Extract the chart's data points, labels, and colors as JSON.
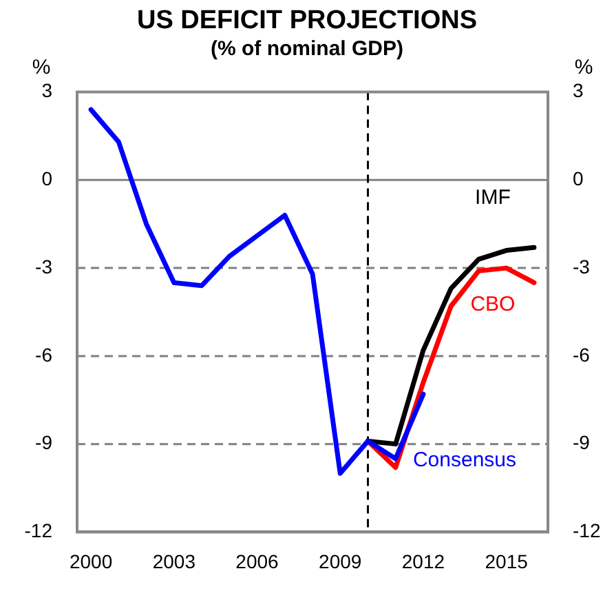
{
  "chart_data": {
    "type": "line",
    "title": "US DEFICIT PROJECTIONS",
    "subtitle": "(% of nominal GDP)",
    "ylabel": "%",
    "y2label": "%",
    "xlim": [
      1999.5,
      2016.5
    ],
    "xticks": [
      2000,
      2003,
      2006,
      2009,
      2012,
      2015
    ],
    "ylim": [
      -12,
      3
    ],
    "yticks": [
      -12,
      -9,
      -6,
      -3,
      0,
      3
    ],
    "y2lim": [
      -12,
      3
    ],
    "y2ticks": [
      -12,
      -9,
      -6,
      -3,
      0,
      3
    ],
    "grid": "y",
    "legend": false,
    "marker": "none",
    "line_style": "solid",
    "ref_lines": [
      {
        "axis": "x",
        "value": 2010,
        "color": "#000000",
        "line_style": "dashed"
      }
    ],
    "series": [
      {
        "name": "CBO",
        "color": "#ff0000",
        "x": [
          2010,
          2011,
          2012,
          2013,
          2014,
          2015,
          2016
        ],
        "values": [
          -8.9,
          -9.8,
          -6.9,
          -4.3,
          -3.1,
          -3.0,
          -3.5
        ]
      },
      {
        "name": "IMF",
        "color": "#000000",
        "x": [
          2010,
          2011,
          2012,
          2013,
          2014,
          2015,
          2016
        ],
        "values": [
          -8.9,
          -9.0,
          -5.8,
          -3.7,
          -2.7,
          -2.4,
          -2.3
        ]
      },
      {
        "name": "Consensus",
        "color": "#0000ff",
        "x": [
          2000,
          2001,
          2002,
          2003,
          2004,
          2005,
          2006,
          2007,
          2008,
          2009,
          2010,
          2011,
          2012
        ],
        "values": [
          2.4,
          1.3,
          -1.5,
          -3.5,
          -3.6,
          -2.6,
          -1.9,
          -1.2,
          -3.2,
          -10.0,
          -8.9,
          -9.5,
          -7.3
        ]
      }
    ]
  }
}
